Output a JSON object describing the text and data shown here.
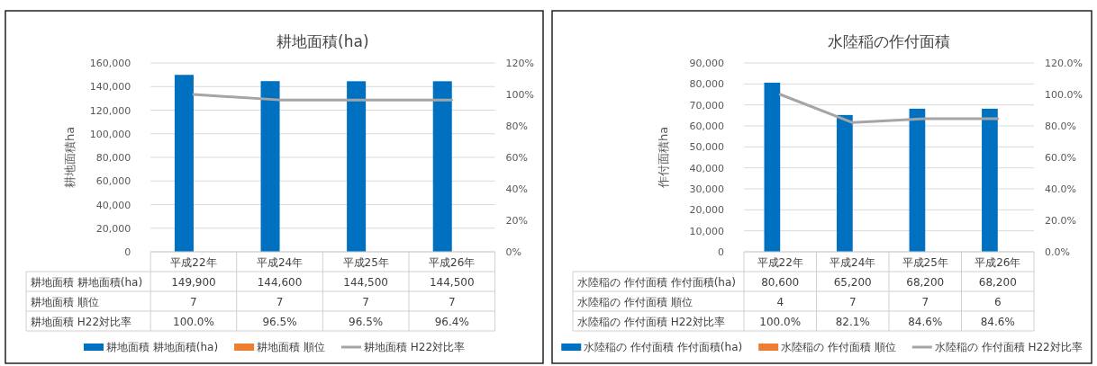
{
  "chart_data": [
    {
      "type": "bar",
      "title": "耕地面積(ha)",
      "ylabel": "耕地面積ha",
      "categories": [
        "平成22年",
        "平成24年",
        "平成25年",
        "平成26年"
      ],
      "ylim": [
        0,
        160000
      ],
      "yticks": [
        {
          "value": 0,
          "label": "0"
        },
        {
          "value": 20000,
          "label": "20,000"
        },
        {
          "value": 40000,
          "label": "40,000"
        },
        {
          "value": 60000,
          "label": "60,000"
        },
        {
          "value": 80000,
          "label": "80,000"
        },
        {
          "value": 100000,
          "label": "100,000"
        },
        {
          "value": 120000,
          "label": "120,000"
        },
        {
          "value": 140000,
          "label": "140,000"
        },
        {
          "value": 160000,
          "label": "160,000"
        }
      ],
      "y2lim": [
        0,
        120
      ],
      "y2ticks": [
        {
          "value": 0,
          "label": "0%"
        },
        {
          "value": 20,
          "label": "20%"
        },
        {
          "value": 40,
          "label": "40%"
        },
        {
          "value": 60,
          "label": "60%"
        },
        {
          "value": 80,
          "label": "80%"
        },
        {
          "value": 100,
          "label": "100%"
        },
        {
          "value": 120,
          "label": "120%"
        }
      ],
      "grid": "y",
      "legend": "bottom",
      "series": [
        {
          "name": "耕地面積 耕地面積(ha)",
          "color": "#0070c0",
          "values": [
            149900,
            144600,
            144500,
            144500
          ],
          "value_labels": [
            "149,900",
            "144,600",
            "144,500",
            "144,500"
          ]
        },
        {
          "name": "耕地面積 順位",
          "color": "#ed7d31",
          "values": [
            7,
            7,
            7,
            7
          ],
          "value_labels": [
            "7",
            "7",
            "7",
            "7"
          ]
        },
        {
          "name": "耕地面積 H22対比率",
          "type": "line",
          "axis": "y2",
          "color": "#a5a5a5",
          "values": [
            100.0,
            96.5,
            96.5,
            96.4
          ],
          "value_labels": [
            "100.0%",
            "96.5%",
            "96.5%",
            "96.4%"
          ]
        }
      ]
    },
    {
      "type": "bar",
      "title": "水陸稲の作付面積",
      "ylabel": "作付面積ha",
      "categories": [
        "平成22年",
        "平成24年",
        "平成25年",
        "平成26年"
      ],
      "ylim": [
        0,
        90000
      ],
      "yticks": [
        {
          "value": 0,
          "label": "0"
        },
        {
          "value": 10000,
          "label": "10,000"
        },
        {
          "value": 20000,
          "label": "20,000"
        },
        {
          "value": 30000,
          "label": "30,000"
        },
        {
          "value": 40000,
          "label": "40,000"
        },
        {
          "value": 50000,
          "label": "50,000"
        },
        {
          "value": 60000,
          "label": "60,000"
        },
        {
          "value": 70000,
          "label": "70,000"
        },
        {
          "value": 80000,
          "label": "80,000"
        },
        {
          "value": 90000,
          "label": "90,000"
        }
      ],
      "y2lim": [
        0,
        120
      ],
      "y2ticks": [
        {
          "value": 0,
          "label": "0.0%"
        },
        {
          "value": 20,
          "label": "20.0%"
        },
        {
          "value": 40,
          "label": "40.0%"
        },
        {
          "value": 60,
          "label": "60.0%"
        },
        {
          "value": 80,
          "label": "80.0%"
        },
        {
          "value": 100,
          "label": "100.0%"
        },
        {
          "value": 120,
          "label": "120.0%"
        }
      ],
      "grid": "y",
      "legend": "bottom",
      "series": [
        {
          "name": "水陸稲の 作付面積 作付面積(ha)",
          "color": "#0070c0",
          "values": [
            80600,
            65200,
            68200,
            68200
          ],
          "value_labels": [
            "80,600",
            "65,200",
            "68,200",
            "68,200"
          ]
        },
        {
          "name": "水陸稲の 作付面積 順位",
          "color": "#ed7d31",
          "values": [
            4,
            7,
            7,
            6
          ],
          "value_labels": [
            "4",
            "7",
            "7",
            "6"
          ]
        },
        {
          "name": "水陸稲の 作付面積 H22対比率",
          "type": "line",
          "axis": "y2",
          "color": "#a5a5a5",
          "values": [
            100.0,
            82.1,
            84.6,
            84.6
          ],
          "value_labels": [
            "100.0%",
            "82.1%",
            "84.6%",
            "84.6%"
          ]
        }
      ]
    }
  ]
}
